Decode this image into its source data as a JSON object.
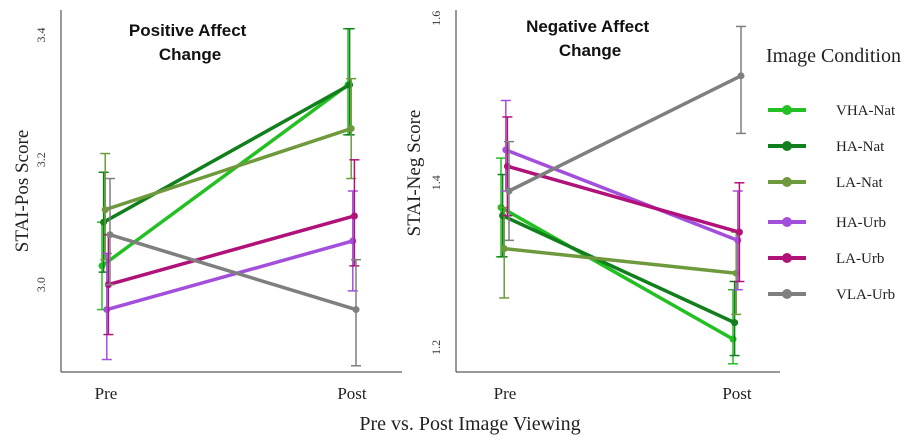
{
  "x_label": "Pre vs. Post Image Viewing",
  "legend": {
    "title": "Image Condition",
    "items": [
      {
        "label": "VHA-Nat",
        "color": "#22c022"
      },
      {
        "label": "HA-Nat",
        "color": "#117f1c"
      },
      {
        "label": "LA-Nat",
        "color": "#6e9a3d"
      },
      {
        "label": "HA-Urb",
        "color": "#a24fdc"
      },
      {
        "label": "LA-Urb",
        "color": "#b0127a"
      },
      {
        "label": "VLA-Urb",
        "color": "#7f7f7f"
      }
    ]
  },
  "chart_data": [
    {
      "type": "line",
      "title_lines": [
        "Positive Affect",
        "Change"
      ],
      "ylabel": "STAI-Pos Score",
      "categories": [
        "Pre",
        "Post"
      ],
      "ylim": [
        2.86,
        3.44
      ],
      "yticks": [
        3.0,
        3.2,
        3.4
      ],
      "ytick_labels": [
        "3.0",
        "3.2",
        "3.4"
      ],
      "series": [
        {
          "name": "VHA-Nat",
          "color": "#22c022",
          "values": [
            3.03,
            3.32
          ],
          "err_low": [
            2.96,
            3.24
          ],
          "err_high": [
            3.1,
            3.41
          ]
        },
        {
          "name": "HA-Nat",
          "color": "#117f1c",
          "values": [
            3.1,
            3.32
          ],
          "err_low": [
            3.02,
            3.24
          ],
          "err_high": [
            3.18,
            3.41
          ]
        },
        {
          "name": "LA-Nat",
          "color": "#6e9a3d",
          "values": [
            3.12,
            3.25
          ],
          "err_low": [
            3.04,
            3.17
          ],
          "err_high": [
            3.21,
            3.33
          ]
        },
        {
          "name": "HA-Urb",
          "color": "#a24fdc",
          "values": [
            2.96,
            3.07
          ],
          "err_low": [
            2.88,
            2.99
          ],
          "err_high": [
            3.05,
            3.15
          ]
        },
        {
          "name": "LA-Urb",
          "color": "#b0127a",
          "values": [
            3.0,
            3.11
          ],
          "err_low": [
            2.92,
            3.03
          ],
          "err_high": [
            3.08,
            3.2
          ]
        },
        {
          "name": "VLA-Urb",
          "color": "#7f7f7f",
          "values": [
            3.08,
            2.96
          ],
          "err_low": [
            3.0,
            2.87
          ],
          "err_high": [
            3.17,
            3.04
          ]
        }
      ]
    },
    {
      "type": "line",
      "title_lines": [
        "Negative Affect",
        "Change"
      ],
      "ylabel": "STAI-Neg Score",
      "categories": [
        "Pre",
        "Post"
      ],
      "ylim": [
        1.17,
        1.61
      ],
      "yticks": [
        1.2,
        1.4,
        1.6
      ],
      "ytick_labels": [
        "1.2",
        "1.4",
        "1.6"
      ],
      "series": [
        {
          "name": "VHA-Nat",
          "color": "#22c022",
          "values": [
            1.37,
            1.21
          ],
          "err_low": [
            1.31,
            1.18
          ],
          "err_high": [
            1.43,
            1.27
          ]
        },
        {
          "name": "HA-Nat",
          "color": "#117f1c",
          "values": [
            1.36,
            1.23
          ],
          "err_low": [
            1.31,
            1.19
          ],
          "err_high": [
            1.41,
            1.28
          ]
        },
        {
          "name": "LA-Nat",
          "color": "#6e9a3d",
          "values": [
            1.32,
            1.29
          ],
          "err_low": [
            1.26,
            1.24
          ],
          "err_high": [
            1.37,
            1.34
          ]
        },
        {
          "name": "HA-Urb",
          "color": "#a24fdc",
          "values": [
            1.44,
            1.33
          ],
          "err_low": [
            1.39,
            1.27
          ],
          "err_high": [
            1.5,
            1.39
          ]
        },
        {
          "name": "LA-Urb",
          "color": "#b0127a",
          "values": [
            1.42,
            1.34
          ],
          "err_low": [
            1.36,
            1.28
          ],
          "err_high": [
            1.48,
            1.4
          ]
        },
        {
          "name": "VLA-Urb",
          "color": "#7f7f7f",
          "values": [
            1.39,
            1.53
          ],
          "err_low": [
            1.33,
            1.46
          ],
          "err_high": [
            1.45,
            1.59
          ]
        }
      ]
    }
  ]
}
